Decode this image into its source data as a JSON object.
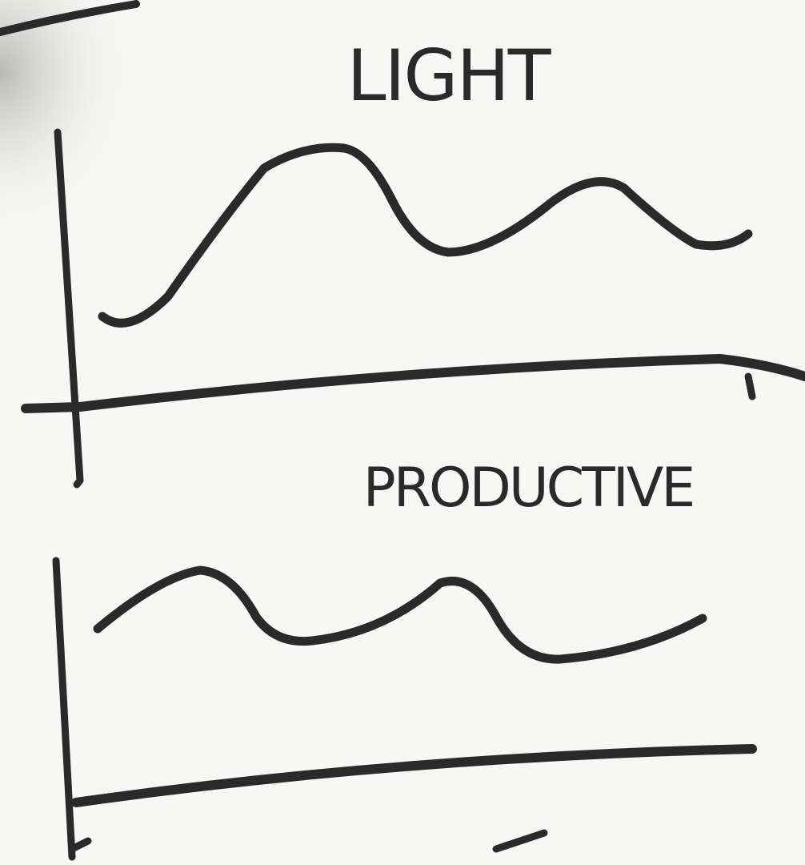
{
  "sketches": [
    {
      "title": "LIGHT"
    },
    {
      "title": "PRODUCTIVE"
    }
  ]
}
